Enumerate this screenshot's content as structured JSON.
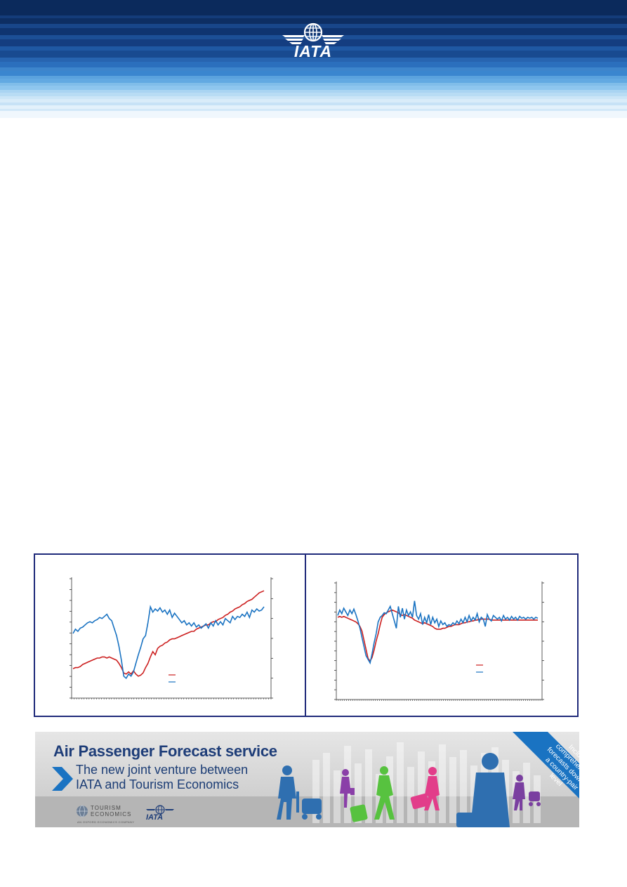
{
  "header": {
    "logo_text": "IATA",
    "brand_colors": {
      "dark": "#0b2a5c",
      "mid": "#1b4f94",
      "light": "#6fb6e6"
    }
  },
  "charts": {
    "series_colors": {
      "red": "#cc1f1f",
      "blue": "#1a73c2"
    }
  },
  "chart_data": [
    {
      "type": "line",
      "title": "",
      "xlabel": "",
      "ylabel": "",
      "x_points": 80,
      "series": [
        {
          "name": "",
          "color": "#cc1f1f",
          "values": [
            17,
            18,
            18,
            19,
            21,
            22,
            23,
            24,
            25,
            26,
            27,
            27,
            28,
            28,
            27,
            28,
            27,
            26,
            25,
            22,
            18,
            13,
            12,
            14,
            12,
            15,
            12,
            10,
            11,
            13,
            18,
            22,
            28,
            33,
            30,
            36,
            38,
            39,
            41,
            42,
            44,
            45,
            45,
            46,
            47,
            48,
            49,
            50,
            51,
            52,
            52,
            54,
            55,
            56,
            57,
            58,
            58,
            60,
            61,
            61,
            63,
            64,
            65,
            67,
            68,
            70,
            71,
            73,
            74,
            75,
            77,
            78,
            80,
            81,
            82,
            84,
            86,
            88,
            89,
            90
          ],
          "ylim": [
            0,
            100
          ]
        },
        {
          "name": "",
          "color": "#1a73c2",
          "values": [
            50,
            54,
            52,
            55,
            56,
            58,
            60,
            61,
            60,
            62,
            63,
            65,
            64,
            66,
            68,
            64,
            62,
            55,
            48,
            38,
            25,
            10,
            8,
            12,
            10,
            14,
            22,
            30,
            37,
            45,
            48,
            60,
            75,
            70,
            73,
            71,
            74,
            70,
            72,
            68,
            72,
            65,
            69,
            66,
            63,
            60,
            62,
            58,
            60,
            57,
            60,
            56,
            58,
            55,
            57,
            59,
            55,
            60,
            57,
            62,
            58,
            61,
            58,
            64,
            62,
            60,
            66,
            63,
            66,
            65,
            68,
            66,
            70,
            65,
            72,
            70,
            73,
            71,
            72,
            75
          ],
          "ylim": [
            0,
            100
          ]
        }
      ]
    },
    {
      "type": "line",
      "title": "",
      "xlabel": "",
      "ylabel": "",
      "x_points": 100,
      "series": [
        {
          "name": "",
          "color": "#cc1f1f",
          "values": [
            70,
            71,
            70,
            71,
            70,
            69,
            68,
            67,
            66,
            65,
            63,
            60,
            55,
            45,
            35,
            25,
            22,
            26,
            34,
            44,
            52,
            62,
            70,
            73,
            75,
            76,
            77,
            78,
            77,
            76,
            75,
            73,
            72,
            73,
            72,
            71,
            70,
            69,
            67,
            66,
            65,
            64,
            63,
            64,
            63,
            62,
            61,
            60,
            58,
            57,
            57,
            57,
            58,
            58,
            59,
            60,
            60,
            61,
            62,
            62,
            62,
            63,
            64,
            64,
            65,
            65,
            66,
            66,
            67,
            67,
            68,
            68,
            68,
            68,
            68,
            68,
            67,
            67,
            67,
            67,
            67,
            67,
            67,
            67,
            67,
            67,
            67,
            67,
            67,
            67,
            67,
            67,
            67,
            67,
            67,
            67,
            67,
            67,
            67,
            67
          ],
          "ylim": [
            0,
            100
          ]
        },
        {
          "name": "",
          "color": "#1a73c2",
          "values": [
            72,
            78,
            74,
            80,
            76,
            72,
            78,
            74,
            79,
            73,
            66,
            58,
            48,
            38,
            28,
            24,
            20,
            30,
            42,
            52,
            65,
            70,
            72,
            75,
            74,
            78,
            82,
            74,
            66,
            58,
            82,
            70,
            80,
            68,
            78,
            72,
            76,
            70,
            88,
            72,
            68,
            74,
            62,
            70,
            64,
            73,
            62,
            70,
            64,
            68,
            60,
            66,
            62,
            64,
            60,
            62,
            61,
            64,
            62,
            66,
            63,
            68,
            64,
            70,
            65,
            72,
            66,
            70,
            67,
            74,
            65,
            70,
            68,
            60,
            73,
            68,
            66,
            72,
            70,
            68,
            70,
            66,
            72,
            68,
            70,
            67,
            71,
            68,
            70,
            67,
            71,
            69,
            70,
            68,
            70,
            69,
            70,
            68,
            70,
            69
          ],
          "ylim": [
            0,
            100
          ]
        }
      ]
    }
  ],
  "banner": {
    "title": "Air Passenger Forecast service",
    "subtitle_line1": "The new joint venture between",
    "subtitle_line2": "IATA and Tourism Economics",
    "corner_note": "Including comprehensive forecasts down to a country-pair level",
    "te_logo_line1": "TOURISM",
    "te_logo_line2": "ECONOMICS",
    "te_tagline": "AN OXFORD ECONOMICS COMPANY",
    "iata_logo": "IATA",
    "colors": {
      "navy": "#1e3d78",
      "corner": "#1a73c2"
    }
  }
}
